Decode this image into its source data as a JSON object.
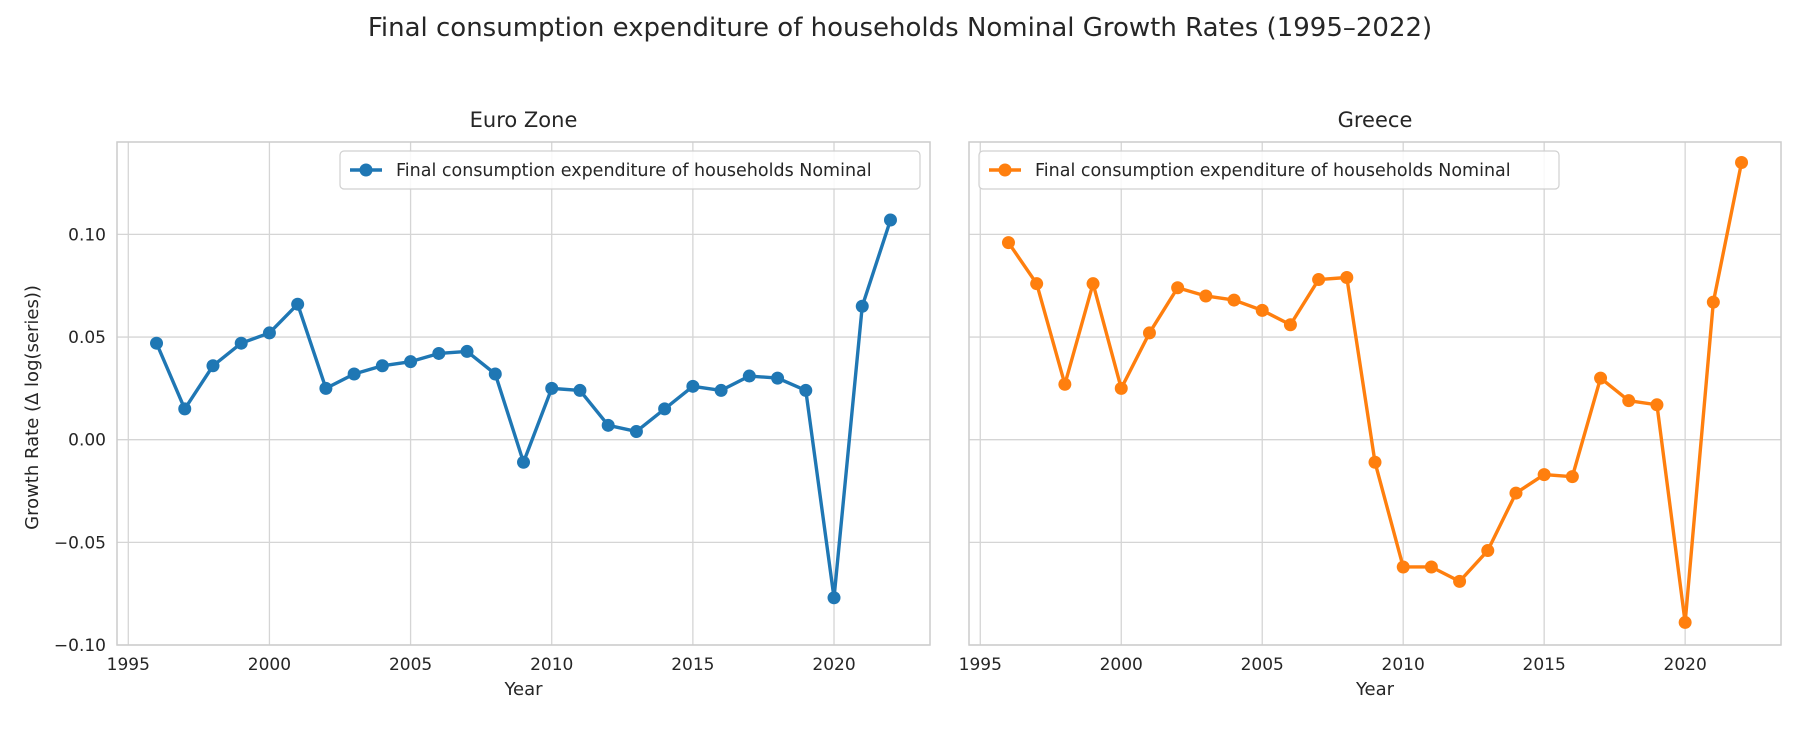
{
  "figure": {
    "title": "Final consumption expenditure of households Nominal Growth Rates (1995–2022)"
  },
  "chart_data": [
    {
      "type": "line",
      "title": "Euro Zone",
      "xlabel": "Year",
      "ylabel": "Growth Rate (Δ log(series))",
      "xlim": [
        1994.6,
        2023.4
      ],
      "ylim": [
        -0.1,
        0.145
      ],
      "xticks": [
        1995,
        2000,
        2005,
        2010,
        2015,
        2020
      ],
      "yticks": [
        -0.1,
        -0.05,
        0.0,
        0.05,
        0.1
      ],
      "ytick_labels": [
        "−0.10",
        "−0.05",
        "0.00",
        "0.05",
        "0.10"
      ],
      "grid": true,
      "legend_position": "upper right",
      "series": [
        {
          "name": "Final consumption expenditure of households Nominal",
          "color": "#1f77b4",
          "marker": "circle",
          "x": [
            1996,
            1997,
            1998,
            1999,
            2000,
            2001,
            2002,
            2003,
            2004,
            2005,
            2006,
            2007,
            2008,
            2009,
            2010,
            2011,
            2012,
            2013,
            2014,
            2015,
            2016,
            2017,
            2018,
            2019,
            2020,
            2021,
            2022
          ],
          "y": [
            0.047,
            0.015,
            0.036,
            0.047,
            0.052,
            0.066,
            0.025,
            0.032,
            0.036,
            0.038,
            0.042,
            0.043,
            0.032,
            -0.011,
            0.025,
            0.024,
            0.007,
            0.004,
            0.015,
            0.026,
            0.024,
            0.031,
            0.03,
            0.024,
            -0.077,
            0.065,
            0.107
          ]
        }
      ]
    },
    {
      "type": "line",
      "title": "Greece",
      "xlabel": "Year",
      "ylabel": "",
      "xlim": [
        1994.6,
        2023.4
      ],
      "ylim": [
        -0.1,
        0.145
      ],
      "xticks": [
        1995,
        2000,
        2005,
        2010,
        2015,
        2020
      ],
      "yticks": [
        -0.1,
        -0.05,
        0.0,
        0.05,
        0.1
      ],
      "grid": true,
      "legend_position": "upper left",
      "series": [
        {
          "name": "Final consumption expenditure of households Nominal",
          "color": "#ff7f0e",
          "marker": "circle",
          "x": [
            1996,
            1997,
            1998,
            1999,
            2000,
            2001,
            2002,
            2003,
            2004,
            2005,
            2006,
            2007,
            2008,
            2009,
            2010,
            2011,
            2012,
            2013,
            2014,
            2015,
            2016,
            2017,
            2018,
            2019,
            2020,
            2021,
            2022
          ],
          "y": [
            0.096,
            0.076,
            0.027,
            0.076,
            0.025,
            0.052,
            0.074,
            0.07,
            0.068,
            0.063,
            0.056,
            0.078,
            0.079,
            -0.011,
            -0.062,
            -0.062,
            -0.069,
            -0.054,
            -0.026,
            -0.017,
            -0.018,
            0.03,
            0.019,
            0.017,
            -0.089,
            0.067,
            0.135
          ]
        }
      ]
    }
  ]
}
